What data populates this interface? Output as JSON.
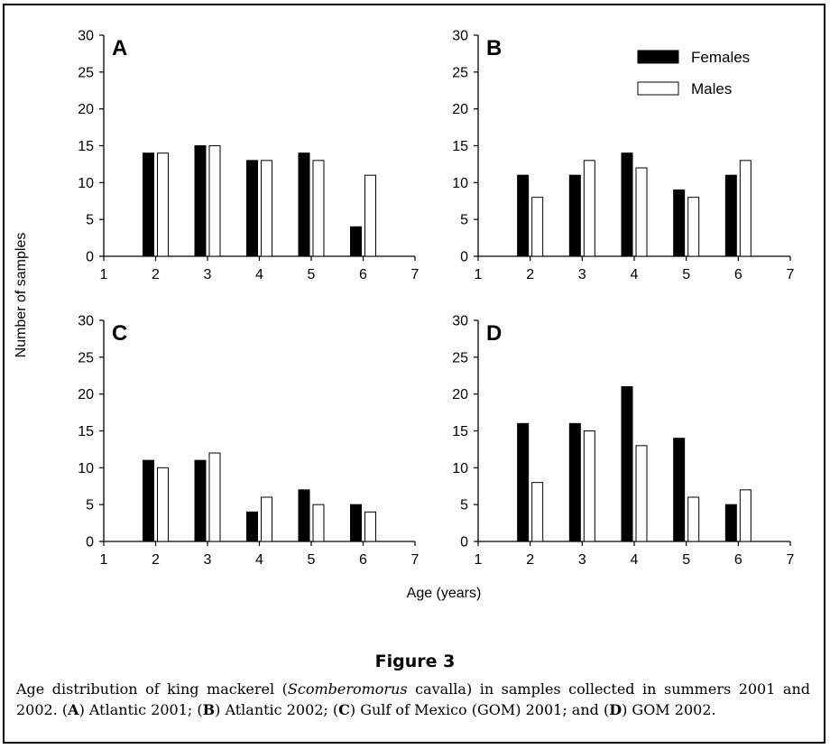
{
  "figure": {
    "title": "Figure 3",
    "caption": {
      "pre": "Age distribution of king mackerel (",
      "species": "Scomberomorus",
      "species2": " cavalla)",
      "mid1": " in samples collected in summers 2001 and 2002. (",
      "a": "A",
      "a_text": ") Atlantic 2001; (",
      "b": "B",
      "b_text": ") Atlantic 2002; (",
      "c": "C",
      "c_text": ") Gulf of Mexico (GOM) 2001; and (",
      "d": "D",
      "d_text": ") GOM 2002."
    }
  },
  "colors": {
    "females": "#000000",
    "males": "#ffffff",
    "axis": "#000000"
  },
  "shared": {
    "ylabel": "Number of samples",
    "xlabel": "Age (years)",
    "legend": [
      "Females",
      "Males"
    ]
  },
  "chart_data": [
    {
      "type": "bar",
      "panel_label": "A",
      "categories": [
        2,
        3,
        4,
        5,
        6
      ],
      "xlim": [
        1,
        7
      ],
      "xticks": [
        1,
        2,
        3,
        4,
        5,
        6,
        7
      ],
      "ylim": [
        0,
        30
      ],
      "yticks": [
        0,
        5,
        10,
        15,
        20,
        25,
        30
      ],
      "series": [
        {
          "name": "Females",
          "values": [
            14,
            15,
            13,
            14,
            4
          ]
        },
        {
          "name": "Males",
          "values": [
            14,
            15,
            13,
            13,
            11
          ]
        }
      ]
    },
    {
      "type": "bar",
      "panel_label": "B",
      "legend_placement": "top-right",
      "categories": [
        2,
        3,
        4,
        5,
        6
      ],
      "xlim": [
        1,
        7
      ],
      "xticks": [
        1,
        2,
        3,
        4,
        5,
        6,
        7
      ],
      "ylim": [
        0,
        30
      ],
      "yticks": [
        0,
        5,
        10,
        15,
        20,
        25,
        30
      ],
      "series": [
        {
          "name": "Females",
          "values": [
            11,
            11,
            14,
            9,
            11
          ]
        },
        {
          "name": "Males",
          "values": [
            8,
            13,
            12,
            8,
            13
          ]
        }
      ]
    },
    {
      "type": "bar",
      "panel_label": "C",
      "categories": [
        2,
        3,
        4,
        5,
        6
      ],
      "xlim": [
        1,
        7
      ],
      "xticks": [
        1,
        2,
        3,
        4,
        5,
        6,
        7
      ],
      "ylim": [
        0,
        30
      ],
      "yticks": [
        0,
        5,
        10,
        15,
        20,
        25,
        30
      ],
      "series": [
        {
          "name": "Females",
          "values": [
            11,
            11,
            4,
            7,
            5
          ]
        },
        {
          "name": "Males",
          "values": [
            10,
            12,
            6,
            5,
            4
          ]
        }
      ]
    },
    {
      "type": "bar",
      "panel_label": "D",
      "categories": [
        2,
        3,
        4,
        5,
        6
      ],
      "xlim": [
        1,
        7
      ],
      "xticks": [
        1,
        2,
        3,
        4,
        5,
        6,
        7
      ],
      "ylim": [
        0,
        30
      ],
      "yticks": [
        0,
        5,
        10,
        15,
        20,
        25,
        30
      ],
      "series": [
        {
          "name": "Females",
          "values": [
            16,
            16,
            21,
            14,
            5
          ]
        },
        {
          "name": "Males",
          "values": [
            8,
            15,
            13,
            6,
            7
          ]
        }
      ]
    }
  ]
}
